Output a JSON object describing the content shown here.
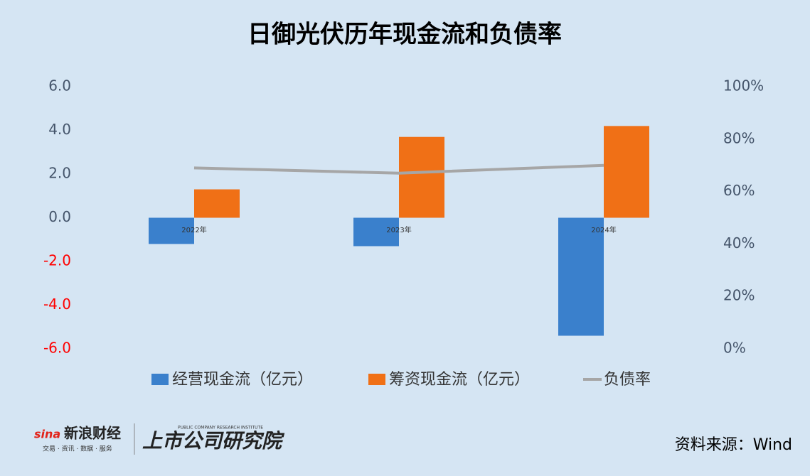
{
  "chart_data": {
    "type": "bar_line",
    "title": "日御光伏历年现金流和负债率",
    "categories": [
      "2022年",
      "2023年",
      "2024年"
    ],
    "series": [
      {
        "name": "经营现金流（亿元）",
        "type": "bar",
        "color": "#3a80cc",
        "values": [
          -1.2,
          -1.3,
          -5.4
        ]
      },
      {
        "name": "筹资现金流（亿元）",
        "type": "bar",
        "color": "#f07016",
        "values": [
          1.3,
          3.7,
          4.2
        ]
      },
      {
        "name": "负债率",
        "type": "line",
        "axis": "y2",
        "color": "#a6a6a6",
        "values": [
          69,
          67,
          70
        ]
      }
    ],
    "ylim": [
      -6,
      6
    ],
    "yticks": [
      {
        "value": 6,
        "label": "6.0"
      },
      {
        "value": 4,
        "label": "4.0"
      },
      {
        "value": 2,
        "label": "2.0"
      },
      {
        "value": 0,
        "label": "0.0"
      },
      {
        "value": -2,
        "label": "-2.0"
      },
      {
        "value": -4,
        "label": "-4.0"
      },
      {
        "value": -6,
        "label": "-6.0"
      }
    ],
    "negative_tick_color": "#ff0000",
    "y2lim": [
      0,
      100
    ],
    "y2ticks": [
      {
        "value": 100,
        "label": "100%"
      },
      {
        "value": 80,
        "label": "80%"
      },
      {
        "value": 60,
        "label": "60%"
      },
      {
        "value": 40,
        "label": "40%"
      },
      {
        "value": 20,
        "label": "20%"
      },
      {
        "value": 0,
        "label": "0%"
      }
    ],
    "grid": false
  },
  "footer": {
    "brand": "新浪财经",
    "brand_tagline": "交易 · 资讯 · 数据 · 服务",
    "institute": "上市公司研究院",
    "institute_en": "PUBLIC COMPANY RESEARCH INSTITUTE",
    "source": "资料来源：Wind"
  }
}
